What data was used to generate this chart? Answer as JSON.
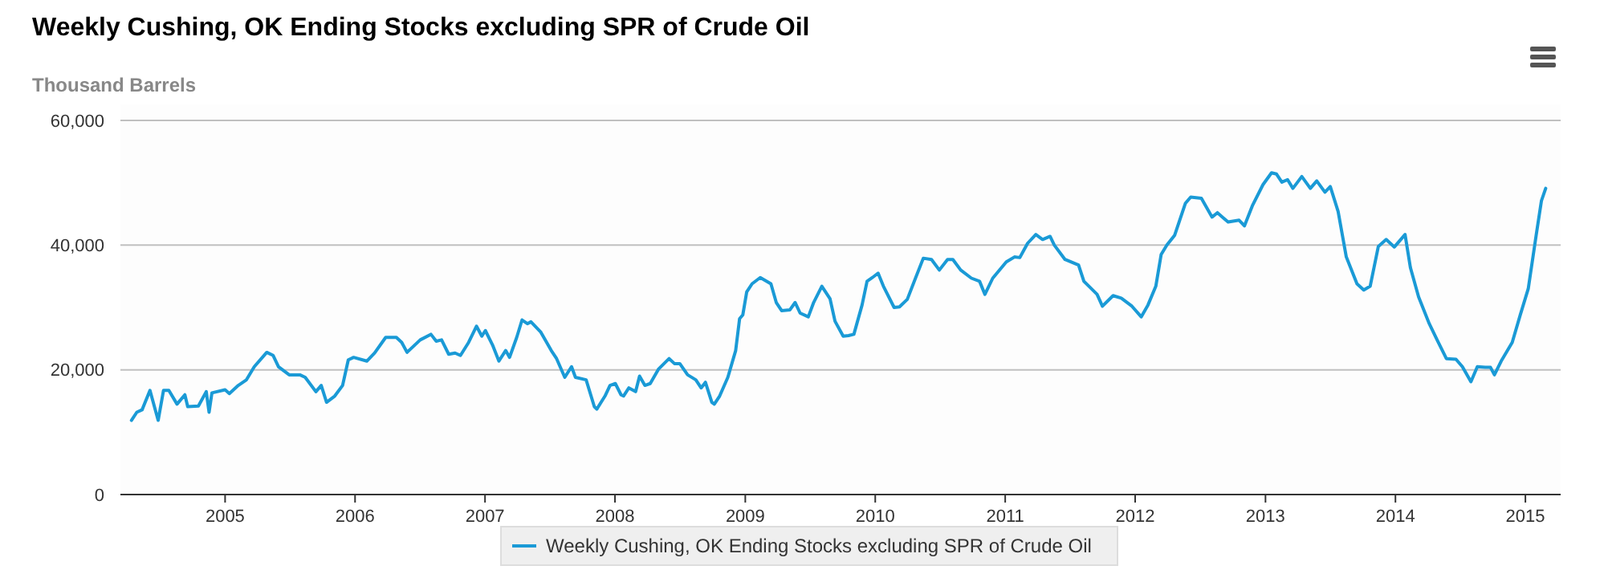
{
  "chart_data": {
    "type": "line",
    "title": "Weekly Cushing, OK Ending Stocks excluding SPR of Crude Oil",
    "ylabel": "Thousand Barrels",
    "x": [
      "2004-04-13",
      "2004-04-28",
      "2004-05-13",
      "2004-06-04",
      "2004-06-27",
      "2004-07-12",
      "2004-07-27",
      "2004-08-19",
      "2004-09-10",
      "2004-09-18",
      "2004-10-18",
      "2004-11-09",
      "2004-11-17",
      "2004-11-25",
      "2005-01-01",
      "2005-01-13",
      "2005-02-07",
      "2005-03-02",
      "2005-03-24",
      "2005-04-28",
      "2005-05-16",
      "2005-05-31",
      "2005-06-30",
      "2005-07-30",
      "2005-08-14",
      "2005-09-13",
      "2005-09-28",
      "2005-10-13",
      "2005-11-05",
      "2005-11-27",
      "2005-12-13",
      "2005-12-28",
      "2006-02-03",
      "2006-02-25",
      "2006-03-28",
      "2006-04-27",
      "2006-05-12",
      "2006-05-27",
      "2006-07-03",
      "2006-08-02",
      "2006-08-17",
      "2006-09-01",
      "2006-09-21",
      "2006-10-09",
      "2006-10-24",
      "2006-11-16",
      "2006-12-08",
      "2006-12-23",
      "2007-01-02",
      "2007-01-22",
      "2007-02-09",
      "2007-02-28",
      "2007-03-11",
      "2007-03-31",
      "2007-04-15",
      "2007-04-30",
      "2007-05-10",
      "2007-06-06",
      "2007-07-06",
      "2007-07-21",
      "2007-08-13",
      "2007-09-01",
      "2007-09-12",
      "2007-10-12",
      "2007-11-04",
      "2007-11-11",
      "2007-12-04",
      "2007-12-18",
      "2008-01-02",
      "2008-01-18",
      "2008-01-25",
      "2008-02-09",
      "2008-02-28",
      "2008-03-10",
      "2008-03-25",
      "2008-04-09",
      "2008-05-02",
      "2008-06-01",
      "2008-06-16",
      "2008-07-01",
      "2008-07-23",
      "2008-08-15",
      "2008-08-30",
      "2008-09-11",
      "2008-09-29",
      "2008-10-06",
      "2008-10-21",
      "2008-11-13",
      "2008-12-05",
      "2008-12-16",
      "2008-12-25",
      "2009-01-05",
      "2009-01-20",
      "2009-02-12",
      "2009-03-14",
      "2009-03-29",
      "2009-04-13",
      "2009-05-06",
      "2009-05-21",
      "2009-06-04",
      "2009-06-27",
      "2009-07-12",
      "2009-08-04",
      "2009-08-27",
      "2009-09-10",
      "2009-10-03",
      "2009-10-18",
      "2009-11-02",
      "2009-11-25",
      "2009-12-09",
      "2009-12-24",
      "2010-01-09",
      "2010-01-24",
      "2010-02-23",
      "2010-03-10",
      "2010-04-01",
      "2010-04-24",
      "2010-05-16",
      "2010-06-08",
      "2010-06-30",
      "2010-07-23",
      "2010-08-07",
      "2010-08-29",
      "2010-09-28",
      "2010-10-21",
      "2010-11-05",
      "2010-11-27",
      "2011-01-04",
      "2011-01-27",
      "2011-02-11",
      "2011-03-05",
      "2011-03-28",
      "2011-04-16",
      "2011-05-07",
      "2011-05-19",
      "2011-06-18",
      "2011-07-26",
      "2011-08-10",
      "2011-09-16",
      "2011-10-01",
      "2011-10-31",
      "2011-11-23",
      "2011-12-23",
      "2012-01-18",
      "2012-02-06",
      "2012-02-28",
      "2012-03-14",
      "2012-03-30",
      "2012-04-21",
      "2012-05-21",
      "2012-06-05",
      "2012-07-05",
      "2012-08-04",
      "2012-08-19",
      "2012-09-18",
      "2012-10-19",
      "2012-11-03",
      "2012-11-25",
      "2012-12-25",
      "2013-01-18",
      "2013-02-01",
      "2013-02-16",
      "2013-03-04",
      "2013-03-19",
      "2013-04-13",
      "2013-05-07",
      "2013-05-25",
      "2013-06-17",
      "2013-07-02",
      "2013-07-24",
      "2013-08-16",
      "2013-09-15",
      "2013-10-04",
      "2013-10-22",
      "2013-11-14",
      "2013-12-06",
      "2013-12-29",
      "2014-01-28",
      "2014-02-12",
      "2014-03-07",
      "2014-04-06",
      "2014-04-28",
      "2014-05-24",
      "2014-06-20",
      "2014-07-08",
      "2014-08-01",
      "2014-08-19",
      "2014-09-10",
      "2014-09-25",
      "2014-10-06",
      "2014-10-25",
      "2014-11-25",
      "2014-12-17",
      "2015-01-09",
      "2015-01-31",
      "2015-02-15",
      "2015-02-27"
    ],
    "series": [
      {
        "name": "Weekly Cushing, OK Ending Stocks excluding SPR of Crude Oil",
        "color": "#1a9ad6",
        "values": [
          11900,
          13200,
          13600,
          16700,
          11900,
          16700,
          16700,
          14500,
          16000,
          14100,
          14200,
          16500,
          13200,
          16300,
          16800,
          16200,
          17500,
          18400,
          20500,
          22800,
          22300,
          20500,
          19200,
          19200,
          18800,
          16500,
          17500,
          14800,
          15800,
          17500,
          21600,
          22000,
          21400,
          22700,
          25200,
          25200,
          24400,
          22800,
          24800,
          25700,
          24600,
          24800,
          22500,
          22700,
          22300,
          24400,
          27000,
          25400,
          26300,
          24000,
          21400,
          23100,
          22000,
          25200,
          28000,
          27400,
          27700,
          26100,
          23100,
          21800,
          18800,
          20500,
          18800,
          18400,
          14100,
          13700,
          15800,
          17500,
          17800,
          16000,
          15800,
          17100,
          16500,
          19000,
          17500,
          17800,
          20100,
          21800,
          21000,
          21000,
          19200,
          18400,
          17100,
          18000,
          14800,
          14500,
          15800,
          18800,
          23100,
          28200,
          28800,
          32500,
          33800,
          34800,
          33800,
          30800,
          29500,
          29600,
          30800,
          29100,
          28500,
          30800,
          33400,
          31400,
          27800,
          25400,
          25500,
          25700,
          30400,
          34200,
          34800,
          35500,
          33400,
          30000,
          30100,
          31300,
          34700,
          37900,
          37700,
          36000,
          37700,
          37700,
          36000,
          34700,
          34200,
          32100,
          34700,
          37300,
          38100,
          38000,
          40300,
          41700,
          40900,
          41400,
          40000,
          37700,
          36800,
          34200,
          32100,
          30200,
          31900,
          31500,
          30200,
          28500,
          30400,
          33400,
          38500,
          40000,
          41600,
          46700,
          47700,
          47500,
          44500,
          45200,
          43700,
          44000,
          43100,
          46300,
          49700,
          51600,
          51400,
          50100,
          50500,
          49100,
          51000,
          49100,
          50300,
          48500,
          49400,
          45400,
          38100,
          33800,
          32800,
          33400,
          39800,
          40900,
          39700,
          41700,
          36400,
          31700,
          27400,
          24800,
          21800,
          21700,
          20500,
          18100,
          20500,
          20400,
          20400,
          19200,
          21400,
          24400,
          28700,
          33000,
          41500,
          47100,
          49100
        ]
      }
    ],
    "xlim": [
      "2004-03-13",
      "2015-04-10"
    ],
    "xticks": [
      "2005",
      "2006",
      "2007",
      "2008",
      "2009",
      "2010",
      "2011",
      "2012",
      "2013",
      "2014",
      "2015"
    ],
    "ylim": [
      0,
      60000
    ],
    "yticks": [
      {
        "value": 0,
        "label": "0"
      },
      {
        "value": 20000,
        "label": "20,000"
      },
      {
        "value": 40000,
        "label": "40,000"
      },
      {
        "value": 60000,
        "label": "60,000"
      }
    ],
    "grid": "y",
    "legend": "bottom",
    "marker": "none",
    "line_style": "solid"
  }
}
